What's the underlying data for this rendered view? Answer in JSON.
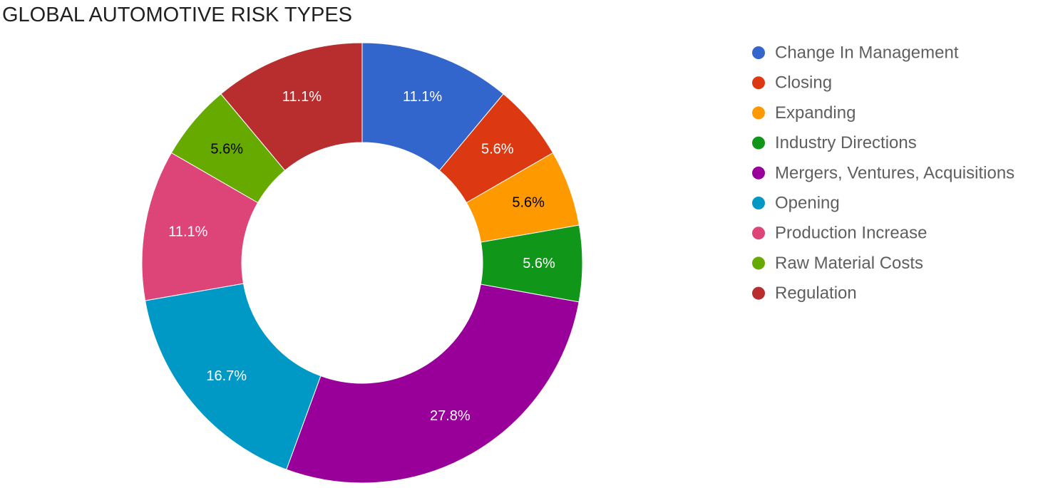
{
  "chart_data": {
    "type": "pie",
    "title": "GLOBAL AUTOMOTIVE RISK TYPES",
    "legend_position": "right",
    "donut": true,
    "categories": [
      "Change In Management",
      "Closing",
      "Expanding",
      "Industry Directions",
      "Mergers, Ventures, Acquisitions",
      "Opening",
      "Production Increase",
      "Raw Material Costs",
      "Regulation"
    ],
    "values": [
      11.1,
      5.6,
      5.6,
      5.6,
      27.8,
      16.7,
      11.1,
      5.6,
      11.1
    ],
    "labels": [
      "11.1%",
      "5.6%",
      "5.6%",
      "5.6%",
      "27.8%",
      "16.7%",
      "11.1%",
      "5.6%",
      "11.1%"
    ],
    "colors": [
      "#3366cc",
      "#dc3912",
      "#ff9900",
      "#109618",
      "#990099",
      "#0099c6",
      "#dd4477",
      "#66aa00",
      "#b82e2e"
    ],
    "label_colors": [
      "#ffffff",
      "#ffffff",
      "#000000",
      "#ffffff",
      "#ffffff",
      "#ffffff",
      "#ffffff",
      "#000000",
      "#ffffff"
    ]
  }
}
